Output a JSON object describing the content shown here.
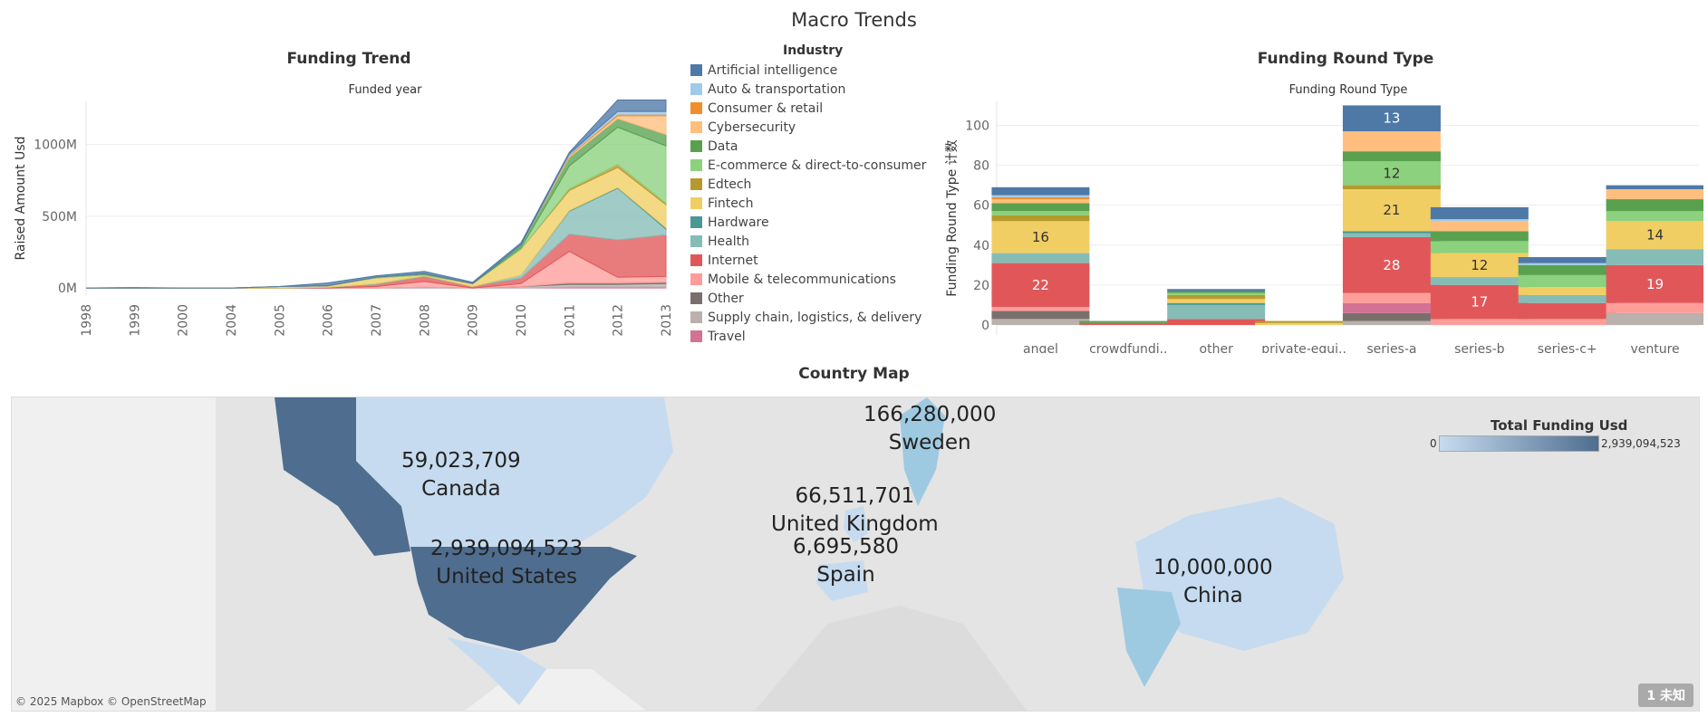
{
  "page": {
    "title": "Macro Trends"
  },
  "funding_trend": {
    "title": "Funding Trend",
    "subtitle": "Funded year",
    "ylabel": "Raised Amount Usd"
  },
  "legend": {
    "title": "Industry",
    "items": [
      {
        "label": "Artificial intelligence",
        "color": "#4e79a7"
      },
      {
        "label": "Auto & transportation",
        "color": "#a0cbe8"
      },
      {
        "label": "Consumer & retail",
        "color": "#f28e2b"
      },
      {
        "label": "Cybersecurity",
        "color": "#ffbe7d"
      },
      {
        "label": "Data",
        "color": "#59a14f"
      },
      {
        "label": "E-commerce & direct-to-consumer",
        "color": "#8cd17d"
      },
      {
        "label": "Edtech",
        "color": "#b6992d"
      },
      {
        "label": "Fintech",
        "color": "#f1ce63"
      },
      {
        "label": "Hardware",
        "color": "#499894"
      },
      {
        "label": "Health",
        "color": "#86bcb6"
      },
      {
        "label": "Internet",
        "color": "#e15759"
      },
      {
        "label": "Mobile & telecommunications",
        "color": "#ff9d9a"
      },
      {
        "label": "Other",
        "color": "#79706e"
      },
      {
        "label": "Supply chain, logistics, & delivery",
        "color": "#bab0ac"
      },
      {
        "label": "Travel",
        "color": "#d37295"
      }
    ]
  },
  "funding_round": {
    "title": "Funding Round Type",
    "subtitle": "Funding Round Type",
    "ylabel": "Funding Round Type 计数"
  },
  "map": {
    "title": "Country Map",
    "credit": "© 2025 Mapbox © OpenStreetMap",
    "badge": "1 未知",
    "scale": {
      "title": "Total Funding Usd",
      "min_label": "0",
      "max_label": "2,939,094,523",
      "color_low": "#c6dbef",
      "color_high": "#4e6d8f"
    },
    "countries": [
      {
        "name": "Sweden",
        "value": "166,280,000"
      },
      {
        "name": "Canada",
        "value": "59,023,709"
      },
      {
        "name": "United Kingdom",
        "value": "66,511,701"
      },
      {
        "name": "United States",
        "value": "2,939,094,523"
      },
      {
        "name": "Spain",
        "value": "6,695,580"
      },
      {
        "name": "China",
        "value": "10,000,000"
      }
    ]
  },
  "chart_data": [
    {
      "type": "area",
      "title": "Funding Trend",
      "subtitle": "Funded year",
      "xlabel": "",
      "ylabel": "Raised Amount Usd",
      "x": [
        "1998",
        "1999",
        "2000",
        "2004",
        "2005",
        "2006",
        "2007",
        "2008",
        "2009",
        "2010",
        "2011",
        "2012",
        "2013"
      ],
      "yticks": [
        0,
        500000000,
        1000000000
      ],
      "ytick_labels": [
        "0M",
        "500M",
        "1000M"
      ],
      "ylim": [
        -50000000,
        1300000000
      ],
      "grid": true,
      "stacked": true,
      "series": [
        {
          "name": "Travel",
          "values": [
            0,
            0,
            0,
            0,
            0,
            0,
            0,
            0,
            0,
            0,
            5000000,
            5000000,
            5000000
          ]
        },
        {
          "name": "Supply chain, logistics, & delivery",
          "values": [
            0,
            0,
            0,
            0,
            0,
            0,
            0,
            5000000,
            0,
            10000000,
            20000000,
            20000000,
            25000000
          ]
        },
        {
          "name": "Other",
          "values": [
            0,
            0,
            0,
            0,
            0,
            0,
            0,
            0,
            0,
            0,
            10000000,
            10000000,
            10000000
          ]
        },
        {
          "name": "Mobile & telecommunications",
          "values": [
            0,
            0,
            0,
            0,
            0,
            0,
            10000000,
            40000000,
            0,
            20000000,
            220000000,
            40000000,
            40000000
          ]
        },
        {
          "name": "Internet",
          "values": [
            0,
            0,
            0,
            0,
            0,
            5000000,
            15000000,
            35000000,
            10000000,
            40000000,
            120000000,
            260000000,
            290000000
          ]
        },
        {
          "name": "Health",
          "values": [
            0,
            0,
            0,
            0,
            0,
            0,
            5000000,
            5000000,
            0,
            20000000,
            160000000,
            360000000,
            40000000
          ]
        },
        {
          "name": "Hardware",
          "values": [
            0,
            0,
            0,
            0,
            0,
            0,
            0,
            0,
            0,
            0,
            5000000,
            5000000,
            10000000
          ]
        },
        {
          "name": "Fintech",
          "values": [
            0,
            0,
            0,
            0,
            10000000,
            10000000,
            40000000,
            5000000,
            20000000,
            180000000,
            140000000,
            140000000,
            160000000
          ]
        },
        {
          "name": "Edtech",
          "values": [
            0,
            0,
            0,
            0,
            0,
            0,
            0,
            0,
            0,
            0,
            10000000,
            20000000,
            10000000
          ]
        },
        {
          "name": "E-commerce & direct-to-consumer",
          "values": [
            0,
            0,
            0,
            0,
            0,
            0,
            5000000,
            5000000,
            0,
            10000000,
            160000000,
            260000000,
            400000000
          ]
        },
        {
          "name": "Data",
          "values": [
            0,
            0,
            0,
            0,
            0,
            0,
            0,
            5000000,
            0,
            20000000,
            60000000,
            60000000,
            80000000
          ]
        },
        {
          "name": "Cybersecurity",
          "values": [
            0,
            0,
            0,
            0,
            0,
            0,
            0,
            0,
            0,
            0,
            10000000,
            20000000,
            130000000
          ]
        },
        {
          "name": "Consumer & retail",
          "values": [
            0,
            0,
            0,
            0,
            0,
            0,
            0,
            0,
            0,
            0,
            5000000,
            10000000,
            10000000
          ]
        },
        {
          "name": "Auto & transportation",
          "values": [
            0,
            0,
            0,
            0,
            0,
            0,
            0,
            0,
            0,
            0,
            10000000,
            20000000,
            20000000
          ]
        },
        {
          "name": "Artificial intelligence",
          "values": [
            0,
            3000000,
            0,
            0,
            0,
            20000000,
            10000000,
            15000000,
            10000000,
            15000000,
            10000000,
            80000000,
            80000000
          ]
        }
      ]
    },
    {
      "type": "bar",
      "title": "Funding Round Type",
      "subtitle": "Funding Round Type",
      "xlabel": "",
      "ylabel": "Funding Round Type 计数",
      "categories": [
        "angel",
        "crowdfundi..",
        "other",
        "private-equi..",
        "series-a",
        "series-b",
        "series-c+",
        "venture"
      ],
      "ylim": [
        -5,
        112
      ],
      "yticks": [
        0,
        20,
        40,
        60,
        80,
        100
      ],
      "grid": true,
      "stacked": true,
      "series": [
        {
          "name": "Supply chain, logistics, & delivery",
          "values": [
            3,
            0,
            0,
            0,
            2,
            0,
            0,
            6
          ]
        },
        {
          "name": "Other",
          "values": [
            4,
            0,
            0,
            0,
            4,
            0,
            0,
            0
          ]
        },
        {
          "name": "Travel",
          "values": [
            0,
            0,
            0,
            0,
            5,
            0,
            0,
            0
          ]
        },
        {
          "name": "Mobile & telecommunications",
          "values": [
            2,
            0,
            0,
            0,
            5,
            3,
            3,
            5
          ]
        },
        {
          "name": "Internet",
          "values": [
            22,
            1,
            3,
            0,
            28,
            17,
            8,
            19
          ]
        },
        {
          "name": "Health",
          "values": [
            5,
            0,
            7,
            0,
            2,
            4,
            4,
            8
          ]
        },
        {
          "name": "Hardware",
          "values": [
            0,
            0,
            1,
            0,
            1,
            0,
            0,
            0
          ]
        },
        {
          "name": "Fintech",
          "values": [
            16,
            0,
            2,
            1,
            21,
            12,
            4,
            14
          ]
        },
        {
          "name": "Edtech",
          "values": [
            3,
            0,
            2,
            1,
            2,
            0,
            0,
            0
          ]
        },
        {
          "name": "E-commerce & direct-to-consumer",
          "values": [
            2,
            0,
            1,
            0,
            12,
            6,
            6,
            5
          ]
        },
        {
          "name": "Data",
          "values": [
            4,
            1,
            1,
            0,
            5,
            5,
            5,
            6
          ]
        },
        {
          "name": "Cybersecurity",
          "values": [
            2,
            0,
            0,
            0,
            10,
            5,
            0,
            5
          ]
        },
        {
          "name": "Consumer & retail",
          "values": [
            1,
            0,
            0,
            0,
            0,
            0,
            0,
            0
          ]
        },
        {
          "name": "Auto & transportation",
          "values": [
            1,
            0,
            0,
            0,
            0,
            1,
            1,
            0
          ]
        },
        {
          "name": "Artificial intelligence",
          "values": [
            4,
            0,
            1,
            0,
            13,
            6,
            3,
            2
          ]
        }
      ],
      "data_labels": [
        {
          "category": "angel",
          "series": "Internet",
          "text": "22"
        },
        {
          "category": "angel",
          "series": "Fintech",
          "text": "16"
        },
        {
          "category": "series-a",
          "series": "Internet",
          "text": "28"
        },
        {
          "category": "series-a",
          "series": "Fintech",
          "text": "21"
        },
        {
          "category": "series-a",
          "series": "E-commerce & direct-to-consumer",
          "text": "12"
        },
        {
          "category": "series-a",
          "series": "Artificial intelligence",
          "text": "13"
        },
        {
          "category": "series-b",
          "series": "Internet",
          "text": "17"
        },
        {
          "category": "series-b",
          "series": "Fintech",
          "text": "12"
        },
        {
          "category": "venture",
          "series": "Internet",
          "text": "19"
        },
        {
          "category": "venture",
          "series": "Fintech",
          "text": "14"
        }
      ]
    }
  ]
}
